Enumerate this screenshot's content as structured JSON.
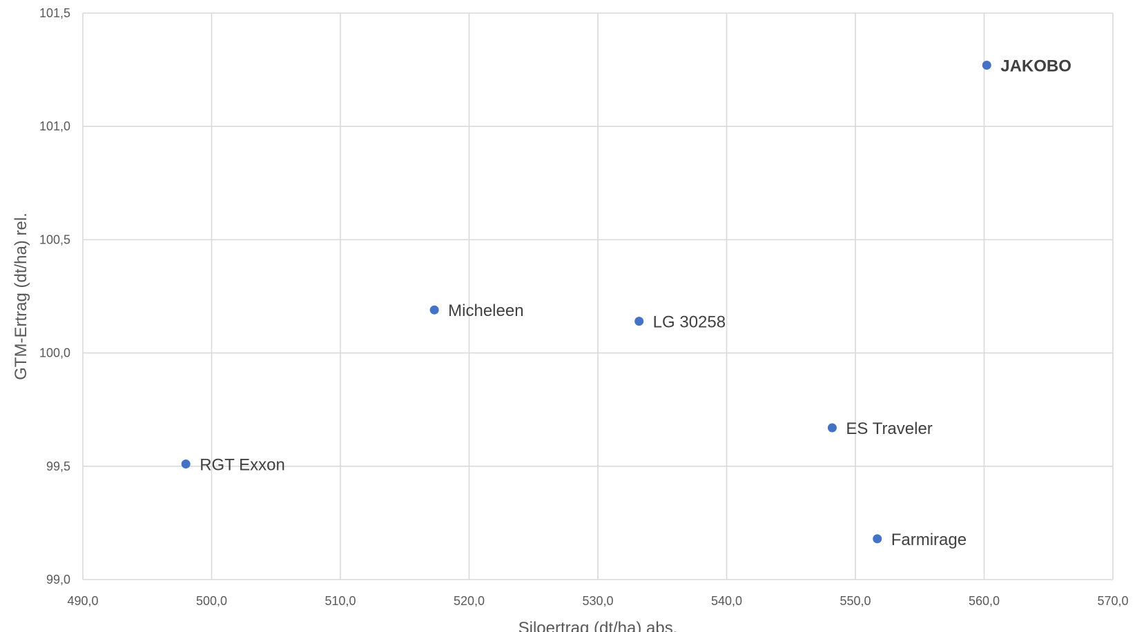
{
  "chart_data": {
    "type": "scatter",
    "title": "",
    "xlabel": "Siloertrag (dt/ha) abs.",
    "ylabel": "GTM-Ertrag (dt/ha) rel.",
    "xlim": [
      490,
      570
    ],
    "ylim": [
      99,
      101.5
    ],
    "x_ticks": [
      490,
      500,
      510,
      520,
      530,
      540,
      550,
      560,
      570
    ],
    "x_tick_labels": [
      "490,0",
      "500,0",
      "510,0",
      "520,0",
      "530,0",
      "540,0",
      "550,0",
      "560,0",
      "570,0"
    ],
    "y_ticks": [
      99,
      99.5,
      100,
      100.5,
      101,
      101.5
    ],
    "y_tick_labels": [
      "99,0",
      "99,5",
      "100,0",
      "100,5",
      "101,0",
      "101,5"
    ],
    "grid": true,
    "marker_color": "#4472c4",
    "points": [
      {
        "label": "JAKOBO",
        "x": 560.2,
        "y": 101.27,
        "bold": true
      },
      {
        "label": "Micheleen",
        "x": 517.3,
        "y": 100.19,
        "bold": false
      },
      {
        "label": "LG 30258",
        "x": 533.2,
        "y": 100.14,
        "bold": false
      },
      {
        "label": "ES Traveler",
        "x": 548.2,
        "y": 99.67,
        "bold": false
      },
      {
        "label": "RGT Exxon",
        "x": 498.0,
        "y": 99.51,
        "bold": false
      },
      {
        "label": "Farmirage",
        "x": 551.7,
        "y": 99.18,
        "bold": false
      }
    ]
  }
}
